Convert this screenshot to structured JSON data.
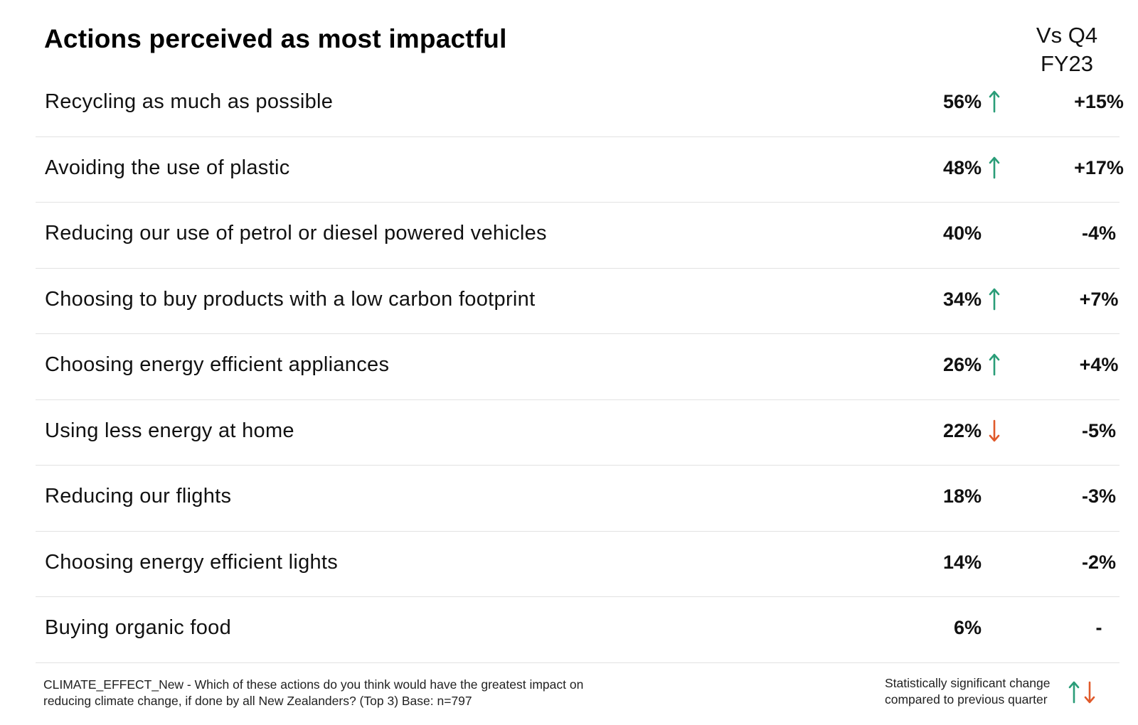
{
  "page": {
    "title": "Actions perceived as most impactful",
    "comparison_header_line1": "Vs Q4",
    "comparison_header_line2": "FY23"
  },
  "colors": {
    "up_arrow": "#2a9d78",
    "down_arrow": "#e05a2b"
  },
  "rows": [
    {
      "label": "Recycling as much as possible",
      "value": "56%",
      "significance": "up",
      "change": "+15%"
    },
    {
      "label": "Avoiding the use of plastic",
      "value": "48%",
      "significance": "up",
      "change": "+17%"
    },
    {
      "label": "Reducing our use of petrol or diesel powered vehicles",
      "value": "40%",
      "significance": "none",
      "change": "-4%"
    },
    {
      "label": "Choosing to buy products with a low carbon footprint",
      "value": "34%",
      "significance": "up",
      "change": "+7%"
    },
    {
      "label": "Choosing energy efficient appliances",
      "value": "26%",
      "significance": "up",
      "change": "+4%"
    },
    {
      "label": "Using less energy at home",
      "value": "22%",
      "significance": "down",
      "change": "-5%"
    },
    {
      "label": "Reducing our flights",
      "value": "18%",
      "significance": "none",
      "change": "-3%"
    },
    {
      "label": "Choosing energy efficient lights",
      "value": "14%",
      "significance": "none",
      "change": "-2%"
    },
    {
      "label": "Buying organic food",
      "value": "6%",
      "significance": "none",
      "change": "-"
    }
  ],
  "footnote": {
    "line1": "CLIMATE_EFFECT_New - Which of these actions do you think would have the greatest impact on",
    "line2": "reducing climate change, if done by all New Zealanders? (Top 3) Base: n=797"
  },
  "legend": {
    "line1": "Statistically significant change",
    "line2": "compared to previous quarter",
    "icons": [
      "arrow-up-icon",
      "arrow-down-icon"
    ]
  }
}
